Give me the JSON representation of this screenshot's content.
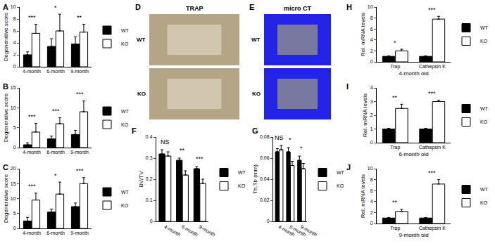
{
  "chart_data": [
    {
      "type": "bar",
      "title": "A",
      "y_label": "Degenerative score",
      "categories": [
        "4-month",
        "6-month",
        "9-month"
      ],
      "series": [
        {
          "name": "WT",
          "color": "#000000",
          "values": [
            2.0,
            3.4,
            3.8
          ],
          "errors": [
            0.5,
            1.3,
            1.2
          ]
        },
        {
          "name": "KO",
          "color": "#ffffff",
          "values": [
            5.6,
            6.0,
            5.8
          ],
          "errors": [
            1.5,
            2.8,
            1.3
          ]
        }
      ],
      "ylim": [
        0,
        10
      ],
      "yticks": [
        0,
        2,
        4,
        6,
        8,
        10
      ],
      "grid": false,
      "legend": "right",
      "annotations": [
        {
          "x": "4-month",
          "text": "***"
        },
        {
          "x": "6-month",
          "text": "*"
        },
        {
          "x": "9-month",
          "text": "**"
        }
      ]
    },
    {
      "type": "bar",
      "title": "B",
      "y_label": "Degenerative score",
      "categories": [
        "4-month",
        "6-month",
        "9-month"
      ],
      "series": [
        {
          "name": "WT",
          "color": "#000000",
          "values": [
            0.7,
            2.2,
            3.3
          ],
          "errors": [
            0.5,
            0.7,
            1.0
          ]
        },
        {
          "name": "KO",
          "color": "#ffffff",
          "values": [
            3.9,
            6.0,
            9.0
          ],
          "errors": [
            2.2,
            1.5,
            2.7
          ]
        }
      ],
      "ylim": [
        0,
        15
      ],
      "yticks": [
        0,
        5,
        10,
        15
      ],
      "grid": false,
      "legend": "right",
      "annotations": [
        {
          "x": "4-month",
          "text": "***"
        },
        {
          "x": "6-month",
          "text": "***"
        },
        {
          "x": "9-month",
          "text": "***"
        }
      ]
    },
    {
      "type": "bar",
      "title": "C",
      "y_label": "Degenerative score",
      "categories": [
        "4-month",
        "6-month",
        "9-month"
      ],
      "series": [
        {
          "name": "WT",
          "color": "#000000",
          "values": [
            2.5,
            5.5,
            7.3
          ],
          "errors": [
            1.2,
            1.0,
            1.2
          ]
        },
        {
          "name": "KO",
          "color": "#ffffff",
          "values": [
            9.5,
            11.5,
            15.0
          ],
          "errors": [
            2.3,
            4.0,
            2.0
          ]
        }
      ],
      "ylim": [
        0,
        20
      ],
      "yticks": [
        0,
        5,
        10,
        15,
        20
      ],
      "grid": false,
      "legend": "right",
      "annotations": [
        {
          "x": "4-month",
          "text": "***"
        },
        {
          "x": "6-month",
          "text": "*"
        },
        {
          "x": "9-month",
          "text": "***"
        }
      ]
    },
    {
      "type": "bar",
      "title": "F",
      "y_label": "BV/TV",
      "categories": [
        "4-month",
        "6-month",
        "9-month"
      ],
      "series": [
        {
          "name": "WT",
          "color": "#000000",
          "values": [
            0.32,
            0.29,
            0.25
          ],
          "errors": [
            0.02,
            0.01,
            0.01
          ]
        },
        {
          "name": "KO",
          "color": "#ffffff",
          "values": [
            0.31,
            0.22,
            0.18
          ],
          "errors": [
            0.02,
            0.02,
            0.02
          ]
        }
      ],
      "ylim": [
        0,
        0.4
      ],
      "yticks": [
        0,
        0.1,
        0.2,
        0.3,
        0.4
      ],
      "grid": false,
      "legend": "right",
      "annotations": [
        {
          "x": "4-month",
          "text": "NS"
        },
        {
          "x": "6-month",
          "text": "**"
        },
        {
          "x": "9-month",
          "text": "***"
        }
      ]
    },
    {
      "type": "bar",
      "title": "G",
      "y_label": "Th.Tb (mm)",
      "categories": [
        "4-month",
        "6-month",
        "9-month"
      ],
      "series": [
        {
          "name": "WT",
          "color": "#000000",
          "values": [
            0.066,
            0.066,
            0.058
          ],
          "errors": [
            0.003,
            0.004,
            0.004
          ]
        },
        {
          "name": "KO",
          "color": "#ffffff",
          "values": [
            0.068,
            0.053,
            0.05
          ],
          "errors": [
            0.004,
            0.004,
            0.005
          ]
        }
      ],
      "ylim": [
        0,
        0.08
      ],
      "yticks": [
        0,
        0.02,
        0.04,
        0.06,
        0.08
      ],
      "grid": false,
      "legend": "right",
      "annotations": [
        {
          "x": "4-month",
          "text": "NS"
        },
        {
          "x": "6-month",
          "text": "*"
        },
        {
          "x": "9-month",
          "text": "*"
        }
      ]
    },
    {
      "type": "bar",
      "title": "H",
      "y_label": "Rel. mRNA levels",
      "x_label": "4-month old",
      "categories": [
        "Trap",
        "Cathepsin K"
      ],
      "series": [
        {
          "name": "WT",
          "color": "#000000",
          "values": [
            1.0,
            1.0
          ],
          "errors": [
            0.1,
            0.1
          ]
        },
        {
          "name": "KO",
          "color": "#ffffff",
          "values": [
            2.0,
            7.8
          ],
          "errors": [
            0.3,
            0.5
          ]
        }
      ],
      "ylim": [
        0,
        10
      ],
      "yticks": [
        0,
        2,
        4,
        6,
        8,
        10
      ],
      "grid": false,
      "legend": "right",
      "annotations": [
        {
          "x": "Trap",
          "text": "*"
        },
        {
          "x": "Cathepsin K",
          "text": "***"
        }
      ]
    },
    {
      "type": "bar",
      "title": "I",
      "y_label": "Rel. mRNA levels",
      "x_label": "6-month old",
      "categories": [
        "Trap",
        "Cathepsin K"
      ],
      "series": [
        {
          "name": "WT",
          "color": "#000000",
          "values": [
            1.0,
            1.0
          ],
          "errors": [
            0.05,
            0.05
          ]
        },
        {
          "name": "KO",
          "color": "#ffffff",
          "values": [
            2.5,
            3.0
          ],
          "errors": [
            0.3,
            0.1
          ]
        }
      ],
      "ylim": [
        0,
        4
      ],
      "yticks": [
        0,
        1,
        2,
        3,
        4
      ],
      "grid": false,
      "legend": "right",
      "annotations": [
        {
          "x": "Trap",
          "text": "**"
        },
        {
          "x": "Cathepsin K",
          "text": "***"
        }
      ]
    },
    {
      "type": "bar",
      "title": "J",
      "y_label": "Rel. mRNA levels",
      "x_label": "9-month old",
      "categories": [
        "Trap",
        "Cathepsin K"
      ],
      "series": [
        {
          "name": "WT",
          "color": "#000000",
          "values": [
            1.0,
            1.0
          ],
          "errors": [
            0.1,
            0.1
          ]
        },
        {
          "name": "KO",
          "color": "#ffffff",
          "values": [
            2.2,
            7.2
          ],
          "errors": [
            0.4,
            0.8
          ]
        }
      ],
      "ylim": [
        0,
        10
      ],
      "yticks": [
        0,
        2,
        4,
        6,
        8,
        10
      ],
      "grid": false,
      "legend": "right",
      "annotations": [
        {
          "x": "Trap",
          "text": "**"
        },
        {
          "x": "Cathepsin K",
          "text": "***"
        }
      ]
    }
  ],
  "panels": [
    {
      "title": "D",
      "subtitle": "TRAP",
      "rows": [
        "WT",
        "KO"
      ]
    },
    {
      "title": "E",
      "subtitle": "micro CT",
      "rows": [
        "WT",
        "KO"
      ]
    }
  ]
}
